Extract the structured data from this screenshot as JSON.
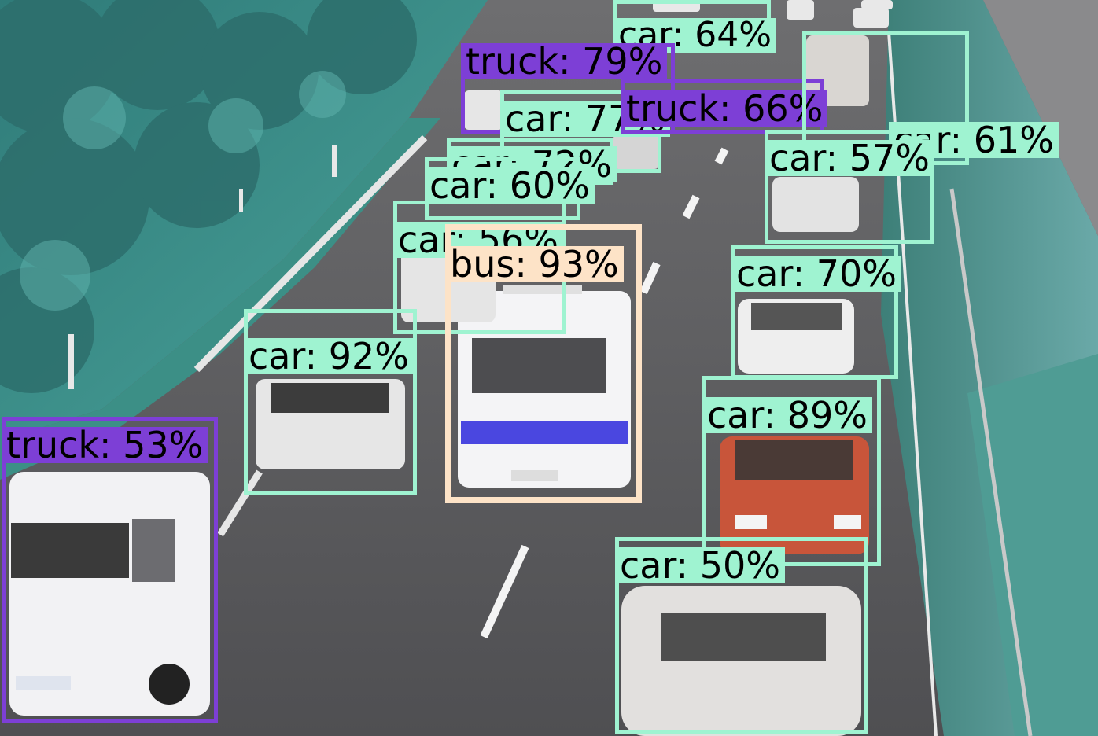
{
  "colors": {
    "car": "#9ff3d1",
    "truck": "#7d3fd6",
    "bus": "#fde3c7",
    "road": "#5c5c5e",
    "foliage": "#3f8f8a",
    "lane_marking": "#f4f4f4"
  },
  "detections": [
    {
      "id": "car-64",
      "label": "car: 64%",
      "class": "car"
    },
    {
      "id": "truck-79",
      "label": "truck: 79%",
      "class": "truck"
    },
    {
      "id": "car-77",
      "label": "car: 77%",
      "class": "car"
    },
    {
      "id": "truck-66",
      "label": "truck: 66%",
      "class": "truck"
    },
    {
      "id": "car-72",
      "label": "car: 72%",
      "class": "car"
    },
    {
      "id": "car-60",
      "label": "car: 60%",
      "class": "car"
    },
    {
      "id": "car-56",
      "label": "car: 56%",
      "class": "car"
    },
    {
      "id": "bus-93",
      "label": "bus: 93%",
      "class": "bus"
    },
    {
      "id": "car-61",
      "label": "car: 61%",
      "class": "car"
    },
    {
      "id": "car-57",
      "label": "car: 57%",
      "class": "car"
    },
    {
      "id": "car-70",
      "label": "car: 70%",
      "class": "car"
    },
    {
      "id": "car-92",
      "label": "car: 92%",
      "class": "car"
    },
    {
      "id": "truck-53",
      "label": "truck: 53%",
      "class": "truck"
    },
    {
      "id": "car-89",
      "label": "car: 89%",
      "class": "car"
    },
    {
      "id": "car-50",
      "label": "car: 50%",
      "class": "car"
    }
  ]
}
